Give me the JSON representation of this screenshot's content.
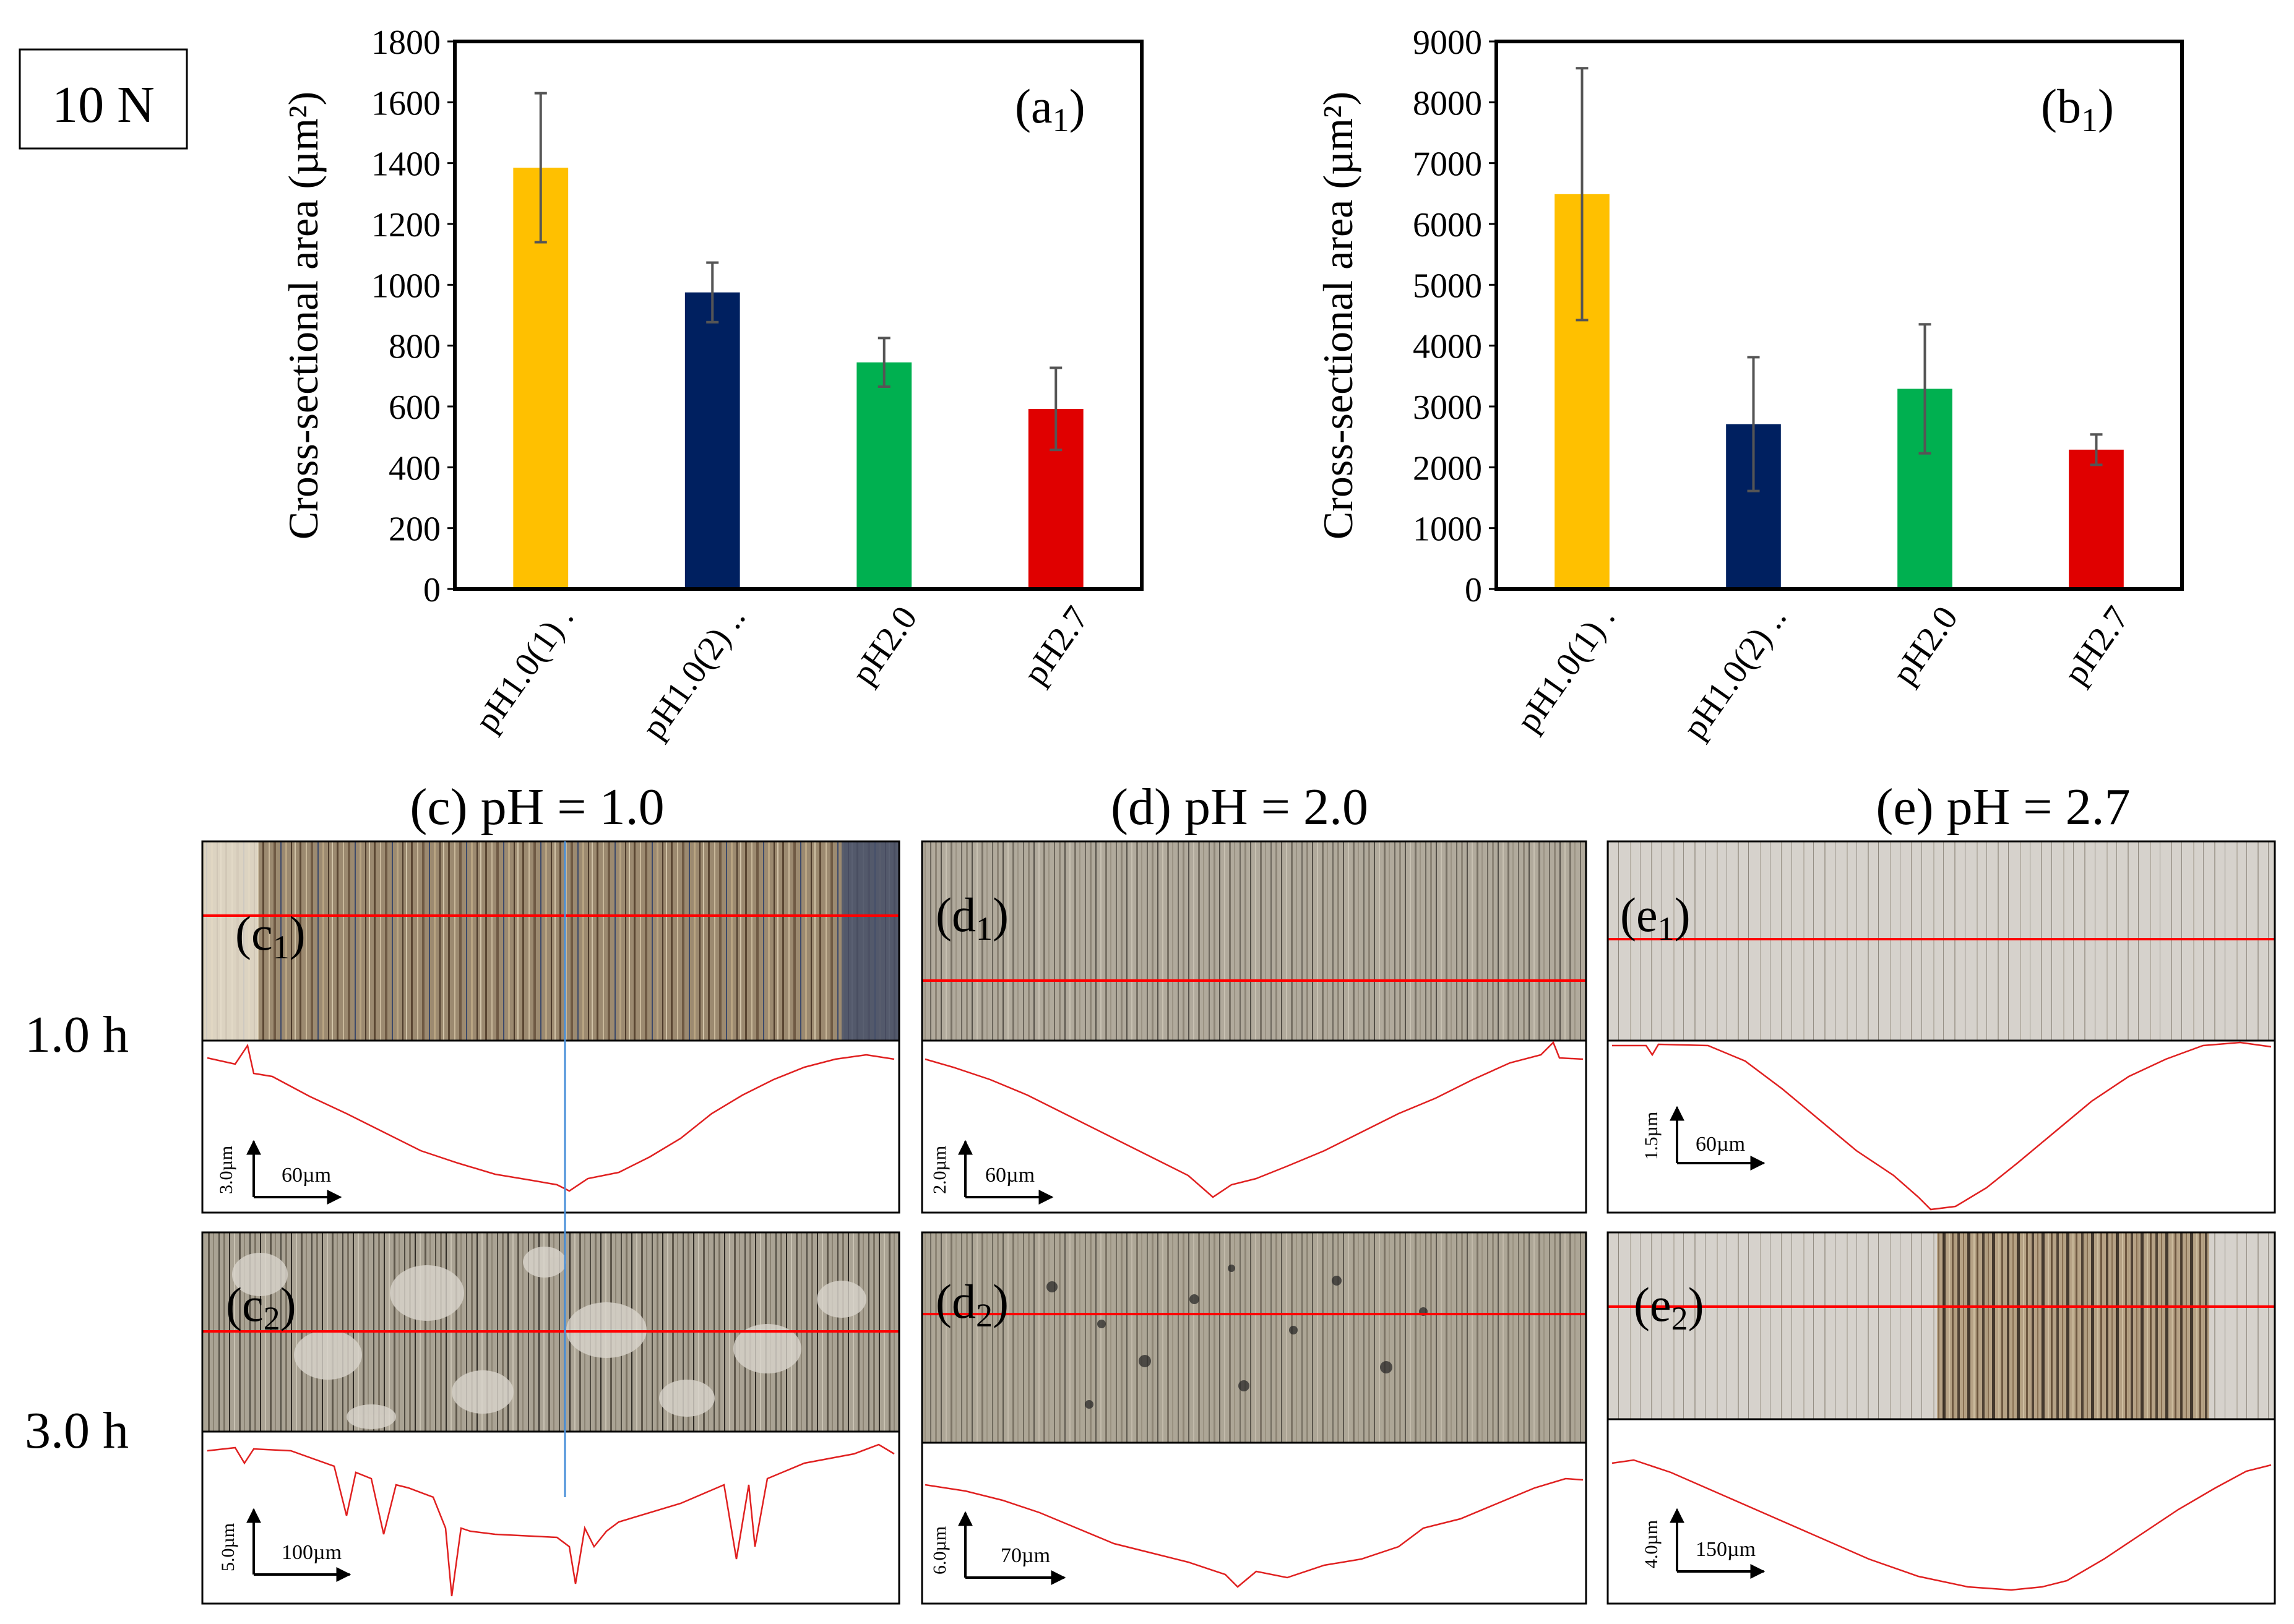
{
  "figure_label": "10 N",
  "chart_data": [
    {
      "type": "bar",
      "panel": "(a1)",
      "panel_main": "(a",
      "panel_sub": "1",
      "panel_close": ")",
      "ylabel": "Cross-sectional area (µm²)",
      "xlabel": "",
      "ylim": [
        0,
        1800
      ],
      "yticks": [
        0,
        200,
        400,
        600,
        800,
        1000,
        1200,
        1400,
        1600,
        1800
      ],
      "categories": [
        "pH1.0(1)  .",
        "pH1.0(2)  ..",
        "pH2.0",
        "pH2.7"
      ],
      "values": [
        1385,
        975,
        745,
        592
      ],
      "errors": [
        245,
        98,
        80,
        135
      ],
      "colors": [
        "#ffc000",
        "#002060",
        "#00b050",
        "#e00000"
      ]
    },
    {
      "type": "bar",
      "panel": "(b1)",
      "panel_main": "(b",
      "panel_sub": "1",
      "panel_close": ")",
      "ylabel": "Cross-sectional area (µm²)",
      "xlabel": "",
      "ylim": [
        0,
        9000
      ],
      "yticks": [
        0,
        1000,
        2000,
        3000,
        4000,
        5000,
        6000,
        7000,
        8000,
        9000
      ],
      "categories": [
        "pH1.0(1)  .",
        "pH1.0(2)  ..",
        "pH2.0",
        "pH2.7"
      ],
      "values": [
        6490,
        2710,
        3290,
        2290
      ],
      "errors": [
        2070,
        1100,
        1060,
        250
      ],
      "colors": [
        "#ffc000",
        "#002060",
        "#00b050",
        "#e00000"
      ]
    }
  ],
  "columns": [
    {
      "title": "(c) pH = 1.0"
    },
    {
      "title": "(d) pH = 2.0"
    },
    {
      "title": "(e) pH = 2.7"
    }
  ],
  "rows": [
    {
      "label": "1.0 h"
    },
    {
      "label": "3.0 h"
    }
  ],
  "micrographs": [
    {
      "label_main": "(c",
      "label_sub": "1",
      "label_close": ")",
      "v_scale": "3.0µm",
      "h_scale": "60µm"
    },
    {
      "label_main": "(d",
      "label_sub": "1",
      "label_close": ")",
      "v_scale": "2.0µm",
      "h_scale": "60µm"
    },
    {
      "label_main": "(e",
      "label_sub": "1",
      "label_close": ")",
      "v_scale": "1.5µm",
      "h_scale": "60µm"
    },
    {
      "label_main": "(c",
      "label_sub": "2",
      "label_close": ")",
      "v_scale": "5.0µm",
      "h_scale": "100µm"
    },
    {
      "label_main": "(d",
      "label_sub": "2",
      "label_close": ")",
      "v_scale": "6.0µm",
      "h_scale": "70µm"
    },
    {
      "label_main": "(e",
      "label_sub": "2",
      "label_close": ")",
      "v_scale": "4.0µm",
      "h_scale": "150µm"
    }
  ],
  "colors": {
    "profile_line": "#e02020",
    "scan_line": "#ff0000",
    "cursor_line": "#4a90d9",
    "axis": "#000000"
  }
}
